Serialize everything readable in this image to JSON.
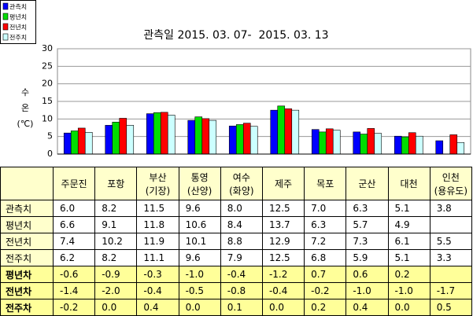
{
  "chart_data": {
    "type": "bar",
    "title": "관측일 2015. 03. 07-  2015. 03. 13",
    "y_label": "수 온 (℃)",
    "categories": [
      "주문진",
      "포항",
      "부산\n(기장)",
      "통영\n(산양)",
      "여수\n(화양)",
      "제주",
      "목포",
      "군산",
      "대천",
      "인천\n(용유도)"
    ],
    "series": [
      {
        "name": "관측치",
        "color": "#0000ff",
        "values": [
          6.0,
          8.2,
          11.5,
          9.6,
          8.0,
          12.5,
          7.0,
          6.3,
          5.1,
          3.8
        ],
        "value_labels": [
          "6.0",
          "8.2",
          "11.5",
          "9.6",
          "8.0",
          "12.5",
          "7.0",
          "6.3",
          "5.1",
          "3.8"
        ]
      },
      {
        "name": "평년치",
        "color": "#00dd00",
        "values": [
          6.6,
          9.1,
          11.8,
          10.6,
          8.4,
          13.7,
          6.3,
          5.7,
          4.9,
          null
        ],
        "value_labels": [
          "6.6",
          "9.1",
          "11.8",
          "10.6",
          "8.4",
          "13.7",
          "6.3",
          "5.7",
          "4.9",
          null
        ]
      },
      {
        "name": "전년치",
        "color": "#ff0000",
        "values": [
          7.4,
          10.2,
          11.9,
          10.1,
          8.8,
          12.9,
          7.2,
          7.3,
          6.1,
          5.5
        ],
        "value_labels": [
          "7.4",
          "10.2",
          "11.9",
          "10.1",
          "8.8",
          "12.9",
          "7.2",
          "7.3",
          "6.1",
          "5.5"
        ]
      },
      {
        "name": "전주치",
        "color": "#ccffff",
        "values": [
          6.2,
          8.2,
          11.1,
          9.6,
          7.9,
          12.5,
          6.8,
          5.9,
          5.1,
          3.3
        ],
        "value_labels": [
          "6.2",
          "8.2",
          "11.1",
          "9.6",
          "7.9",
          "12.5",
          "6.8",
          "5.9",
          "5.1",
          "3.3"
        ]
      }
    ],
    "ylim": [
      0,
      30
    ],
    "yticks": [
      0,
      5,
      10,
      15,
      20,
      25,
      30
    ],
    "grid": true,
    "legend": "top-left"
  },
  "table": {
    "rows": [
      {
        "label": "평년차",
        "cells": [
          "-0.6",
          "-0.9",
          "-0.3",
          "-1.0",
          "-0.4",
          "-1.2",
          "0.7",
          "0.6",
          "0.2",
          null
        ]
      },
      {
        "label": "전년차",
        "cells": [
          "-1.4",
          "-2.0",
          "-0.4",
          "-0.5",
          "-0.8",
          "-0.4",
          "-0.2",
          "-1.0",
          "-1.0",
          "-1.7"
        ]
      },
      {
        "label": "전주차",
        "cells": [
          "-0.2",
          "0.0",
          "0.4",
          "0.0",
          "0.1",
          "0.0",
          "0.2",
          "0.4",
          "0.0",
          "0.5"
        ]
      }
    ]
  }
}
